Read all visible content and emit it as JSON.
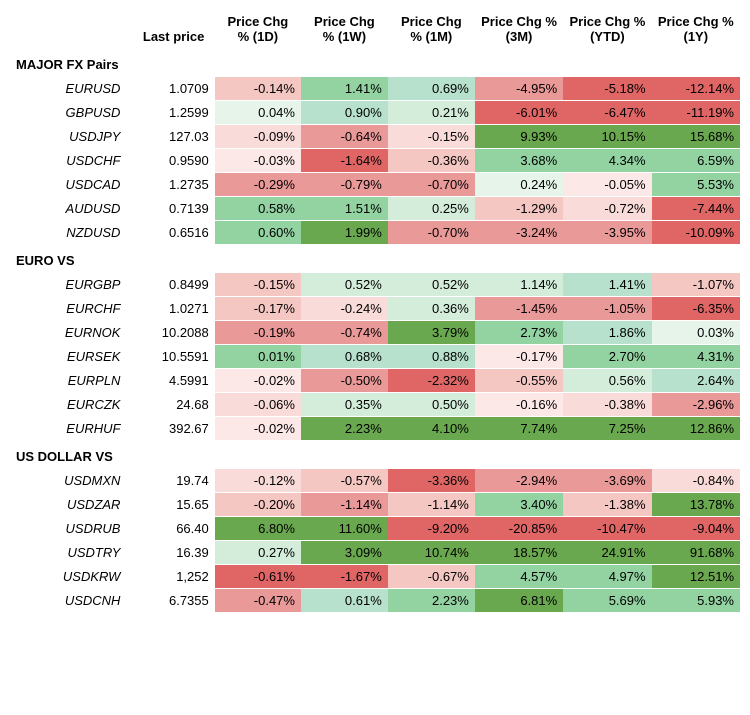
{
  "headers": {
    "pair": "",
    "last": "Last price",
    "d1": "Price Chg % (1D)",
    "w1": "Price Chg % (1W)",
    "m1": "Price Chg % (1M)",
    "m3": "Price Chg % (3M)",
    "ytd": "Price Chg % (YTD)",
    "y1": "Price Chg % (1Y)"
  },
  "colors": {
    "neg5": "#e06666",
    "neg4": "#ea9999",
    "neg3": "#f4c7c3",
    "neg2": "#f9dcd9",
    "neg1": "#fce8e6",
    "zero": "#ffffff",
    "pos1": "#e6f4ea",
    "pos2": "#d4edda",
    "pos3": "#b7e1cd",
    "pos4": "#93d3a2",
    "pos5": "#6aa84f"
  },
  "sections": [
    {
      "title": "MAJOR FX Pairs",
      "rows": [
        {
          "pair": "EURUSD",
          "last": "1.0709",
          "cells": [
            {
              "v": "-0.14%",
              "c": "neg3"
            },
            {
              "v": "1.41%",
              "c": "pos4"
            },
            {
              "v": "0.69%",
              "c": "pos3"
            },
            {
              "v": "-4.95%",
              "c": "neg4"
            },
            {
              "v": "-5.18%",
              "c": "neg5"
            },
            {
              "v": "-12.14%",
              "c": "neg5"
            }
          ]
        },
        {
          "pair": "GBPUSD",
          "last": "1.2599",
          "cells": [
            {
              "v": "0.04%",
              "c": "pos1"
            },
            {
              "v": "0.90%",
              "c": "pos3"
            },
            {
              "v": "0.21%",
              "c": "pos2"
            },
            {
              "v": "-6.01%",
              "c": "neg5"
            },
            {
              "v": "-6.47%",
              "c": "neg5"
            },
            {
              "v": "-11.19%",
              "c": "neg5"
            }
          ]
        },
        {
          "pair": "USDJPY",
          "last": "127.03",
          "cells": [
            {
              "v": "-0.09%",
              "c": "neg2"
            },
            {
              "v": "-0.64%",
              "c": "neg4"
            },
            {
              "v": "-0.15%",
              "c": "neg2"
            },
            {
              "v": "9.93%",
              "c": "pos5"
            },
            {
              "v": "10.15%",
              "c": "pos5"
            },
            {
              "v": "15.68%",
              "c": "pos5"
            }
          ]
        },
        {
          "pair": "USDCHF",
          "last": "0.9590",
          "cells": [
            {
              "v": "-0.03%",
              "c": "neg1"
            },
            {
              "v": "-1.64%",
              "c": "neg5"
            },
            {
              "v": "-0.36%",
              "c": "neg3"
            },
            {
              "v": "3.68%",
              "c": "pos4"
            },
            {
              "v": "4.34%",
              "c": "pos4"
            },
            {
              "v": "6.59%",
              "c": "pos4"
            }
          ]
        },
        {
          "pair": "USDCAD",
          "last": "1.2735",
          "cells": [
            {
              "v": "-0.29%",
              "c": "neg4"
            },
            {
              "v": "-0.79%",
              "c": "neg4"
            },
            {
              "v": "-0.70%",
              "c": "neg4"
            },
            {
              "v": "0.24%",
              "c": "pos1"
            },
            {
              "v": "-0.05%",
              "c": "neg1"
            },
            {
              "v": "5.53%",
              "c": "pos4"
            }
          ]
        },
        {
          "pair": "AUDUSD",
          "last": "0.7139",
          "cells": [
            {
              "v": "0.58%",
              "c": "pos4"
            },
            {
              "v": "1.51%",
              "c": "pos4"
            },
            {
              "v": "0.25%",
              "c": "pos2"
            },
            {
              "v": "-1.29%",
              "c": "neg3"
            },
            {
              "v": "-0.72%",
              "c": "neg2"
            },
            {
              "v": "-7.44%",
              "c": "neg5"
            }
          ]
        },
        {
          "pair": "NZDUSD",
          "last": "0.6516",
          "cells": [
            {
              "v": "0.60%",
              "c": "pos4"
            },
            {
              "v": "1.99%",
              "c": "pos5"
            },
            {
              "v": "-0.70%",
              "c": "neg4"
            },
            {
              "v": "-3.24%",
              "c": "neg4"
            },
            {
              "v": "-3.95%",
              "c": "neg4"
            },
            {
              "v": "-10.09%",
              "c": "neg5"
            }
          ]
        }
      ]
    },
    {
      "title": "EURO VS",
      "rows": [
        {
          "pair": "EURGBP",
          "last": "0.8499",
          "cells": [
            {
              "v": "-0.15%",
              "c": "neg3"
            },
            {
              "v": "0.52%",
              "c": "pos2"
            },
            {
              "v": "0.52%",
              "c": "pos2"
            },
            {
              "v": "1.14%",
              "c": "pos2"
            },
            {
              "v": "1.41%",
              "c": "pos3"
            },
            {
              "v": "-1.07%",
              "c": "neg3"
            }
          ]
        },
        {
          "pair": "EURCHF",
          "last": "1.0271",
          "cells": [
            {
              "v": "-0.17%",
              "c": "neg3"
            },
            {
              "v": "-0.24%",
              "c": "neg2"
            },
            {
              "v": "0.36%",
              "c": "pos2"
            },
            {
              "v": "-1.45%",
              "c": "neg4"
            },
            {
              "v": "-1.05%",
              "c": "neg4"
            },
            {
              "v": "-6.35%",
              "c": "neg5"
            }
          ]
        },
        {
          "pair": "EURNOK",
          "last": "10.2088",
          "cells": [
            {
              "v": "-0.19%",
              "c": "neg4"
            },
            {
              "v": "-0.74%",
              "c": "neg4"
            },
            {
              "v": "3.79%",
              "c": "pos5"
            },
            {
              "v": "2.73%",
              "c": "pos4"
            },
            {
              "v": "1.86%",
              "c": "pos3"
            },
            {
              "v": "0.03%",
              "c": "pos1"
            }
          ]
        },
        {
          "pair": "EURSEK",
          "last": "10.5591",
          "cells": [
            {
              "v": "0.01%",
              "c": "pos4"
            },
            {
              "v": "0.68%",
              "c": "pos3"
            },
            {
              "v": "0.88%",
              "c": "pos3"
            },
            {
              "v": "-0.17%",
              "c": "neg1"
            },
            {
              "v": "2.70%",
              "c": "pos4"
            },
            {
              "v": "4.31%",
              "c": "pos4"
            }
          ]
        },
        {
          "pair": "EURPLN",
          "last": "4.5991",
          "cells": [
            {
              "v": "-0.02%",
              "c": "neg1"
            },
            {
              "v": "-0.50%",
              "c": "neg4"
            },
            {
              "v": "-2.32%",
              "c": "neg5"
            },
            {
              "v": "-0.55%",
              "c": "neg3"
            },
            {
              "v": "0.56%",
              "c": "pos2"
            },
            {
              "v": "2.64%",
              "c": "pos3"
            }
          ]
        },
        {
          "pair": "EURCZK",
          "last": "24.68",
          "cells": [
            {
              "v": "-0.06%",
              "c": "neg2"
            },
            {
              "v": "0.35%",
              "c": "pos2"
            },
            {
              "v": "0.50%",
              "c": "pos2"
            },
            {
              "v": "-0.16%",
              "c": "neg1"
            },
            {
              "v": "-0.38%",
              "c": "neg2"
            },
            {
              "v": "-2.96%",
              "c": "neg4"
            }
          ]
        },
        {
          "pair": "EURHUF",
          "last": "392.67",
          "cells": [
            {
              "v": "-0.02%",
              "c": "neg1"
            },
            {
              "v": "2.23%",
              "c": "pos5"
            },
            {
              "v": "4.10%",
              "c": "pos5"
            },
            {
              "v": "7.74%",
              "c": "pos5"
            },
            {
              "v": "7.25%",
              "c": "pos5"
            },
            {
              "v": "12.86%",
              "c": "pos5"
            }
          ]
        }
      ]
    },
    {
      "title": "US DOLLAR VS",
      "rows": [
        {
          "pair": "USDMXN",
          "last": "19.74",
          "cells": [
            {
              "v": "-0.12%",
              "c": "neg2"
            },
            {
              "v": "-0.57%",
              "c": "neg3"
            },
            {
              "v": "-3.36%",
              "c": "neg5"
            },
            {
              "v": "-2.94%",
              "c": "neg4"
            },
            {
              "v": "-3.69%",
              "c": "neg4"
            },
            {
              "v": "-0.84%",
              "c": "neg2"
            }
          ]
        },
        {
          "pair": "USDZAR",
          "last": "15.65",
          "cells": [
            {
              "v": "-0.20%",
              "c": "neg3"
            },
            {
              "v": "-1.14%",
              "c": "neg4"
            },
            {
              "v": "-1.14%",
              "c": "neg3"
            },
            {
              "v": "3.40%",
              "c": "pos4"
            },
            {
              "v": "-1.38%",
              "c": "neg3"
            },
            {
              "v": "13.78%",
              "c": "pos5"
            }
          ]
        },
        {
          "pair": "USDRUB",
          "last": "66.40",
          "cells": [
            {
              "v": "6.80%",
              "c": "pos5"
            },
            {
              "v": "11.60%",
              "c": "pos5"
            },
            {
              "v": "-9.20%",
              "c": "neg5"
            },
            {
              "v": "-20.85%",
              "c": "neg5"
            },
            {
              "v": "-10.47%",
              "c": "neg5"
            },
            {
              "v": "-9.04%",
              "c": "neg5"
            }
          ]
        },
        {
          "pair": "USDTRY",
          "last": "16.39",
          "cells": [
            {
              "v": "0.27%",
              "c": "pos2"
            },
            {
              "v": "3.09%",
              "c": "pos5"
            },
            {
              "v": "10.74%",
              "c": "pos5"
            },
            {
              "v": "18.57%",
              "c": "pos5"
            },
            {
              "v": "24.91%",
              "c": "pos5"
            },
            {
              "v": "91.68%",
              "c": "pos5"
            }
          ]
        },
        {
          "pair": "USDKRW",
          "last": "1,252",
          "cells": [
            {
              "v": "-0.61%",
              "c": "neg5"
            },
            {
              "v": "-1.67%",
              "c": "neg5"
            },
            {
              "v": "-0.67%",
              "c": "neg3"
            },
            {
              "v": "4.57%",
              "c": "pos4"
            },
            {
              "v": "4.97%",
              "c": "pos4"
            },
            {
              "v": "12.51%",
              "c": "pos5"
            }
          ]
        },
        {
          "pair": "USDCNH",
          "last": "6.7355",
          "cells": [
            {
              "v": "-0.47%",
              "c": "neg4"
            },
            {
              "v": "0.61%",
              "c": "pos3"
            },
            {
              "v": "2.23%",
              "c": "pos4"
            },
            {
              "v": "6.81%",
              "c": "pos5"
            },
            {
              "v": "5.69%",
              "c": "pos4"
            },
            {
              "v": "5.93%",
              "c": "pos4"
            }
          ]
        }
      ]
    }
  ]
}
